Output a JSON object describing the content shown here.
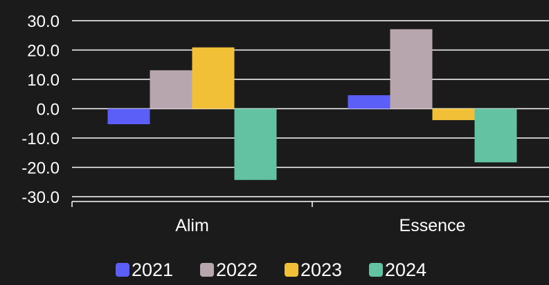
{
  "chart_data": {
    "type": "bar",
    "categories": [
      "Alim",
      "Essence"
    ],
    "series": [
      {
        "name": "2021",
        "values": [
          -5.3,
          4.6
        ],
        "color": "#5b5ff8"
      },
      {
        "name": "2022",
        "values": [
          13.1,
          27.1
        ],
        "color": "#b7a6ad"
      },
      {
        "name": "2023",
        "values": [
          20.9,
          -3.9
        ],
        "color": "#f2c037"
      },
      {
        "name": "2024",
        "values": [
          -24.3,
          -18.3
        ],
        "color": "#62c2a1"
      }
    ],
    "ylim": [
      -30,
      30
    ],
    "yticks": [
      "30.0",
      "20.0",
      "10.0",
      "0.0",
      "-10.0",
      "-20.0",
      "-30.0"
    ],
    "ytick_values": [
      30,
      20,
      10,
      0,
      -10,
      -20,
      -30
    ],
    "grid": true,
    "legend_position": "bottom",
    "background_color": "#1b1b1b",
    "grid_color": "#ffffff"
  }
}
